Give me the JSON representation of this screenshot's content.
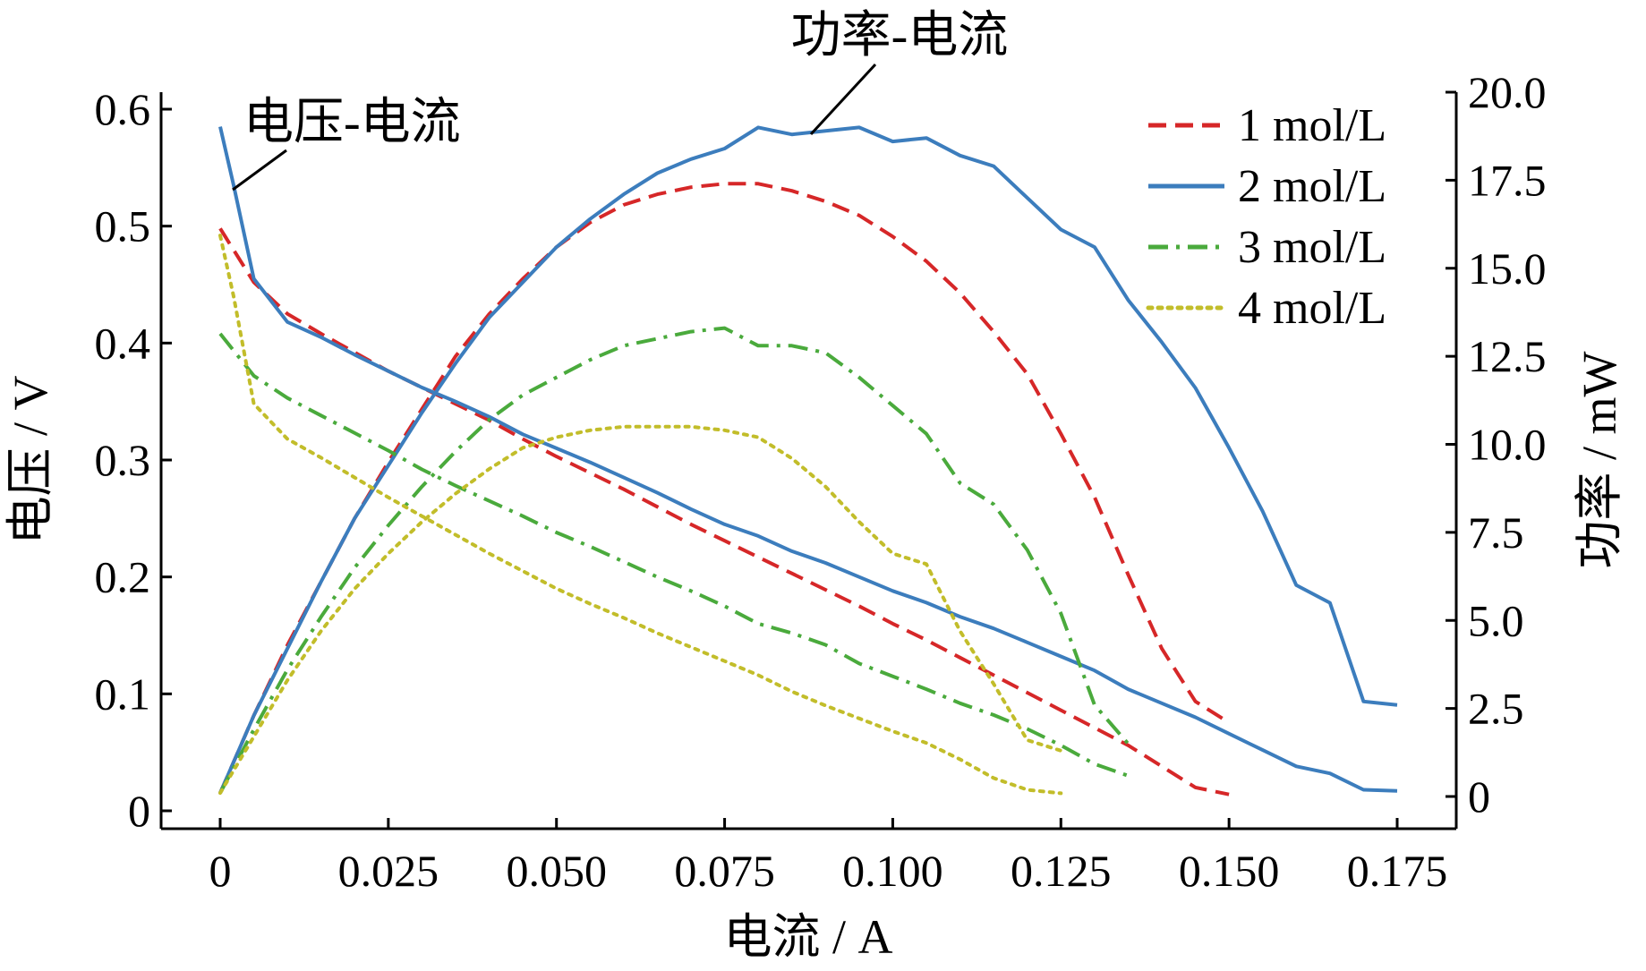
{
  "chart_data": {
    "type": "line",
    "title": "",
    "xlabel": "电流 / A",
    "ylabel_left": "电压 / V",
    "ylabel_right": "功率 / mW",
    "xlim": [
      0,
      0.175
    ],
    "ylim_left": [
      0,
      0.6
    ],
    "ylim_right": [
      0,
      20.0
    ],
    "x_ticks": [
      0,
      0.025,
      0.05,
      0.075,
      0.1,
      0.125,
      0.15,
      0.175
    ],
    "x_tick_labels": [
      "0",
      "0.025",
      "0.050",
      "0.075",
      "0.100",
      "0.125",
      "0.150",
      "0.175"
    ],
    "y_left_ticks": [
      0,
      0.1,
      0.2,
      0.3,
      0.4,
      0.5,
      0.6
    ],
    "y_left_tick_labels": [
      "0",
      "0.1",
      "0.2",
      "0.3",
      "0.4",
      "0.5",
      "0.6"
    ],
    "y_right_ticks": [
      0,
      2.5,
      5.0,
      7.5,
      10.0,
      12.5,
      15.0,
      17.5,
      20.0
    ],
    "y_right_tick_labels": [
      "0",
      "2.5",
      "5.0",
      "7.5",
      "10.0",
      "12.5",
      "15.0",
      "17.5",
      "20.0"
    ],
    "grid": false,
    "legend_position": "top-right",
    "annotations": [
      {
        "text": "电压-电流"
      },
      {
        "text": "功率-电流"
      }
    ],
    "series": [
      {
        "name": "1 mol/L",
        "color": "#d62728",
        "dash": "dashed",
        "kind": "voltage",
        "axis": "left",
        "x": [
          0,
          0.005,
          0.01,
          0.015,
          0.02,
          0.025,
          0.03,
          0.035,
          0.04,
          0.045,
          0.05,
          0.055,
          0.06,
          0.065,
          0.07,
          0.075,
          0.08,
          0.085,
          0.09,
          0.095,
          0.1,
          0.105,
          0.11,
          0.115,
          0.12,
          0.125,
          0.13,
          0.135,
          0.14,
          0.145,
          0.15
        ],
        "y": [
          0.498,
          0.452,
          0.425,
          0.408,
          0.392,
          0.376,
          0.362,
          0.348,
          0.334,
          0.318,
          0.303,
          0.289,
          0.275,
          0.26,
          0.245,
          0.231,
          0.217,
          0.203,
          0.189,
          0.175,
          0.16,
          0.146,
          0.131,
          0.116,
          0.101,
          0.086,
          0.071,
          0.056,
          0.038,
          0.02,
          0.014
        ]
      },
      {
        "name": "1 mol/L",
        "color": "#d62728",
        "dash": "dashed",
        "kind": "power",
        "axis": "right",
        "x": [
          0,
          0.005,
          0.01,
          0.015,
          0.02,
          0.025,
          0.03,
          0.035,
          0.04,
          0.045,
          0.05,
          0.055,
          0.06,
          0.065,
          0.07,
          0.075,
          0.08,
          0.085,
          0.09,
          0.095,
          0.1,
          0.105,
          0.11,
          0.115,
          0.12,
          0.125,
          0.13,
          0.135,
          0.14,
          0.145,
          0.15
        ],
        "y": [
          0.1,
          2.3,
          4.3,
          6.1,
          7.9,
          9.5,
          11.0,
          12.5,
          13.7,
          14.7,
          15.6,
          16.3,
          16.8,
          17.1,
          17.3,
          17.4,
          17.4,
          17.2,
          16.9,
          16.5,
          15.9,
          15.2,
          14.3,
          13.2,
          12.0,
          10.3,
          8.5,
          6.3,
          4.2,
          2.7,
          2.1
        ]
      },
      {
        "name": "2 mol/L",
        "color": "#3c7dbd",
        "dash": "solid",
        "kind": "voltage",
        "axis": "left",
        "x": [
          0,
          0.002,
          0.005,
          0.01,
          0.015,
          0.02,
          0.025,
          0.03,
          0.035,
          0.04,
          0.045,
          0.05,
          0.055,
          0.06,
          0.065,
          0.07,
          0.075,
          0.08,
          0.085,
          0.09,
          0.095,
          0.1,
          0.105,
          0.11,
          0.115,
          0.12,
          0.125,
          0.13,
          0.135,
          0.14,
          0.145,
          0.15,
          0.155,
          0.16,
          0.165,
          0.17,
          0.175
        ],
        "y": [
          0.585,
          0.535,
          0.455,
          0.418,
          0.405,
          0.39,
          0.376,
          0.362,
          0.35,
          0.337,
          0.322,
          0.31,
          0.298,
          0.285,
          0.272,
          0.258,
          0.245,
          0.235,
          0.222,
          0.212,
          0.2,
          0.188,
          0.178,
          0.166,
          0.156,
          0.144,
          0.132,
          0.12,
          0.104,
          0.092,
          0.08,
          0.066,
          0.052,
          0.038,
          0.032,
          0.018,
          0.017
        ]
      },
      {
        "name": "2 mol/L",
        "color": "#3c7dbd",
        "dash": "solid",
        "kind": "power",
        "axis": "right",
        "x": [
          0,
          0.005,
          0.01,
          0.015,
          0.02,
          0.025,
          0.03,
          0.035,
          0.04,
          0.045,
          0.05,
          0.055,
          0.06,
          0.065,
          0.07,
          0.075,
          0.08,
          0.085,
          0.09,
          0.095,
          0.1,
          0.105,
          0.11,
          0.115,
          0.12,
          0.125,
          0.13,
          0.135,
          0.14,
          0.145,
          0.15,
          0.155,
          0.16,
          0.165,
          0.17,
          0.175
        ],
        "y": [
          0.1,
          2.3,
          4.2,
          6.1,
          7.9,
          9.4,
          10.9,
          12.3,
          13.6,
          14.6,
          15.6,
          16.4,
          17.1,
          17.7,
          18.1,
          18.4,
          19.0,
          18.8,
          18.9,
          19.0,
          18.6,
          18.7,
          18.2,
          17.9,
          17.0,
          16.1,
          15.6,
          14.1,
          12.9,
          11.6,
          9.9,
          8.1,
          6.0,
          5.5,
          2.7,
          2.6
        ]
      },
      {
        "name": "3 mol/L",
        "color": "#4aaa3c",
        "dash": "dashdot",
        "kind": "voltage",
        "axis": "left",
        "x": [
          0,
          0.005,
          0.01,
          0.015,
          0.02,
          0.025,
          0.03,
          0.035,
          0.04,
          0.045,
          0.05,
          0.055,
          0.06,
          0.065,
          0.07,
          0.075,
          0.08,
          0.085,
          0.09,
          0.095,
          0.1,
          0.105,
          0.11,
          0.115,
          0.12,
          0.125,
          0.13,
          0.135
        ],
        "y": [
          0.408,
          0.372,
          0.353,
          0.338,
          0.323,
          0.308,
          0.292,
          0.278,
          0.265,
          0.252,
          0.238,
          0.226,
          0.213,
          0.2,
          0.188,
          0.175,
          0.16,
          0.152,
          0.142,
          0.126,
          0.115,
          0.104,
          0.092,
          0.082,
          0.07,
          0.056,
          0.04,
          0.03
        ]
      },
      {
        "name": "3 mol/L",
        "color": "#4aaa3c",
        "dash": "dashdot",
        "kind": "power",
        "axis": "right",
        "x": [
          0,
          0.005,
          0.01,
          0.015,
          0.02,
          0.025,
          0.03,
          0.035,
          0.04,
          0.045,
          0.05,
          0.055,
          0.06,
          0.065,
          0.07,
          0.075,
          0.08,
          0.085,
          0.09,
          0.095,
          0.1,
          0.105,
          0.11,
          0.115,
          0.12,
          0.125,
          0.13,
          0.135
        ],
        "y": [
          0.1,
          1.9,
          3.6,
          5.1,
          6.5,
          7.7,
          8.8,
          9.8,
          10.7,
          11.4,
          11.9,
          12.4,
          12.8,
          13.0,
          13.2,
          13.3,
          12.8,
          12.8,
          12.6,
          11.9,
          11.1,
          10.3,
          8.9,
          8.3,
          7.0,
          5.2,
          2.6,
          1.5
        ]
      },
      {
        "name": "4 mol/L",
        "color": "#c2bd2a",
        "dash": "dotted",
        "kind": "voltage",
        "axis": "left",
        "x": [
          0,
          0.002,
          0.005,
          0.01,
          0.015,
          0.02,
          0.025,
          0.03,
          0.035,
          0.04,
          0.045,
          0.05,
          0.055,
          0.06,
          0.065,
          0.07,
          0.075,
          0.08,
          0.085,
          0.09,
          0.095,
          0.1,
          0.105,
          0.11,
          0.115,
          0.12,
          0.125
        ],
        "y": [
          0.492,
          0.44,
          0.348,
          0.318,
          0.302,
          0.285,
          0.268,
          0.252,
          0.236,
          0.22,
          0.205,
          0.19,
          0.177,
          0.165,
          0.152,
          0.14,
          0.128,
          0.116,
          0.102,
          0.09,
          0.079,
          0.068,
          0.058,
          0.044,
          0.028,
          0.018,
          0.015
        ]
      },
      {
        "name": "4 mol/L",
        "color": "#c2bd2a",
        "dash": "dotted",
        "kind": "power",
        "axis": "right",
        "x": [
          0,
          0.005,
          0.01,
          0.015,
          0.02,
          0.025,
          0.03,
          0.035,
          0.04,
          0.045,
          0.05,
          0.055,
          0.06,
          0.065,
          0.07,
          0.075,
          0.08,
          0.085,
          0.09,
          0.095,
          0.1,
          0.105,
          0.11,
          0.115,
          0.12,
          0.125
        ],
        "y": [
          0.1,
          1.7,
          3.3,
          4.7,
          5.9,
          6.9,
          7.8,
          8.6,
          9.3,
          9.9,
          10.2,
          10.4,
          10.5,
          10.5,
          10.5,
          10.4,
          10.2,
          9.6,
          8.8,
          7.8,
          6.9,
          6.6,
          4.7,
          3.2,
          1.6,
          1.3
        ]
      }
    ]
  }
}
